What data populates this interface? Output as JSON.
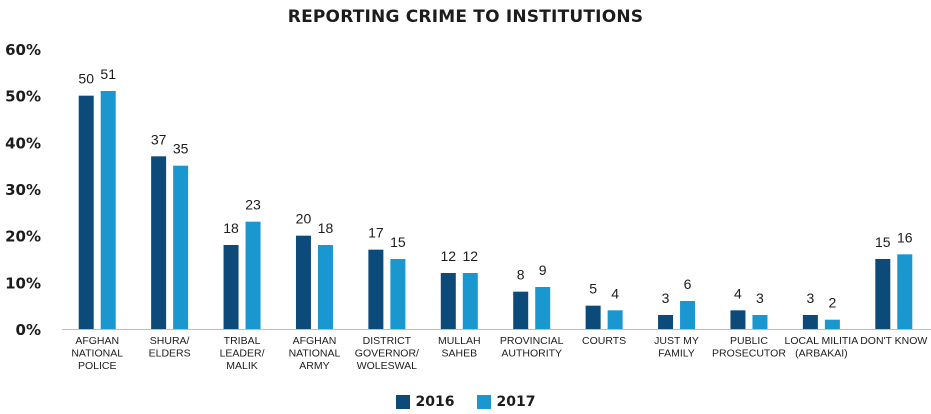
{
  "chart_data": {
    "type": "bar",
    "title": "REPORTING CRIME TO INSTITUTIONS",
    "categories": [
      [
        "AFGHAN",
        "NATIONAL",
        "POLICE"
      ],
      [
        "SHURA/",
        "ELDERS"
      ],
      [
        "TRIBAL",
        "LEADER/",
        "MALIK"
      ],
      [
        "AFGHAN",
        "NATIONAL",
        "ARMY"
      ],
      [
        "DISTRICT",
        "GOVERNOR/",
        "WOLESWAL"
      ],
      [
        "MULLAH",
        "SAHEB"
      ],
      [
        "PROVINCIAL",
        "AUTHORITY"
      ],
      [
        "COURTS"
      ],
      [
        "JUST MY",
        "FAMILY"
      ],
      [
        "PUBLIC",
        "PROSECUTOR"
      ],
      [
        "LOCAL MILITIA",
        "(ARBAKAI)"
      ],
      [
        "DON'T KNOW"
      ]
    ],
    "series": [
      {
        "name": "2016",
        "values": [
          50,
          37,
          18,
          20,
          17,
          12,
          8,
          5,
          3,
          4,
          3,
          15
        ],
        "color": "#0c4a7a"
      },
      {
        "name": "2017",
        "values": [
          51,
          35,
          23,
          18,
          15,
          12,
          9,
          4,
          6,
          3,
          2,
          16
        ],
        "color": "#1a97cf"
      }
    ],
    "y_ticks": [
      "0%",
      "10%",
      "20%",
      "30%",
      "40%",
      "50%",
      "60%"
    ],
    "ylim": [
      0,
      60
    ],
    "grid": false,
    "legend_position": "bottom-center",
    "xlabel": "",
    "ylabel": ""
  }
}
